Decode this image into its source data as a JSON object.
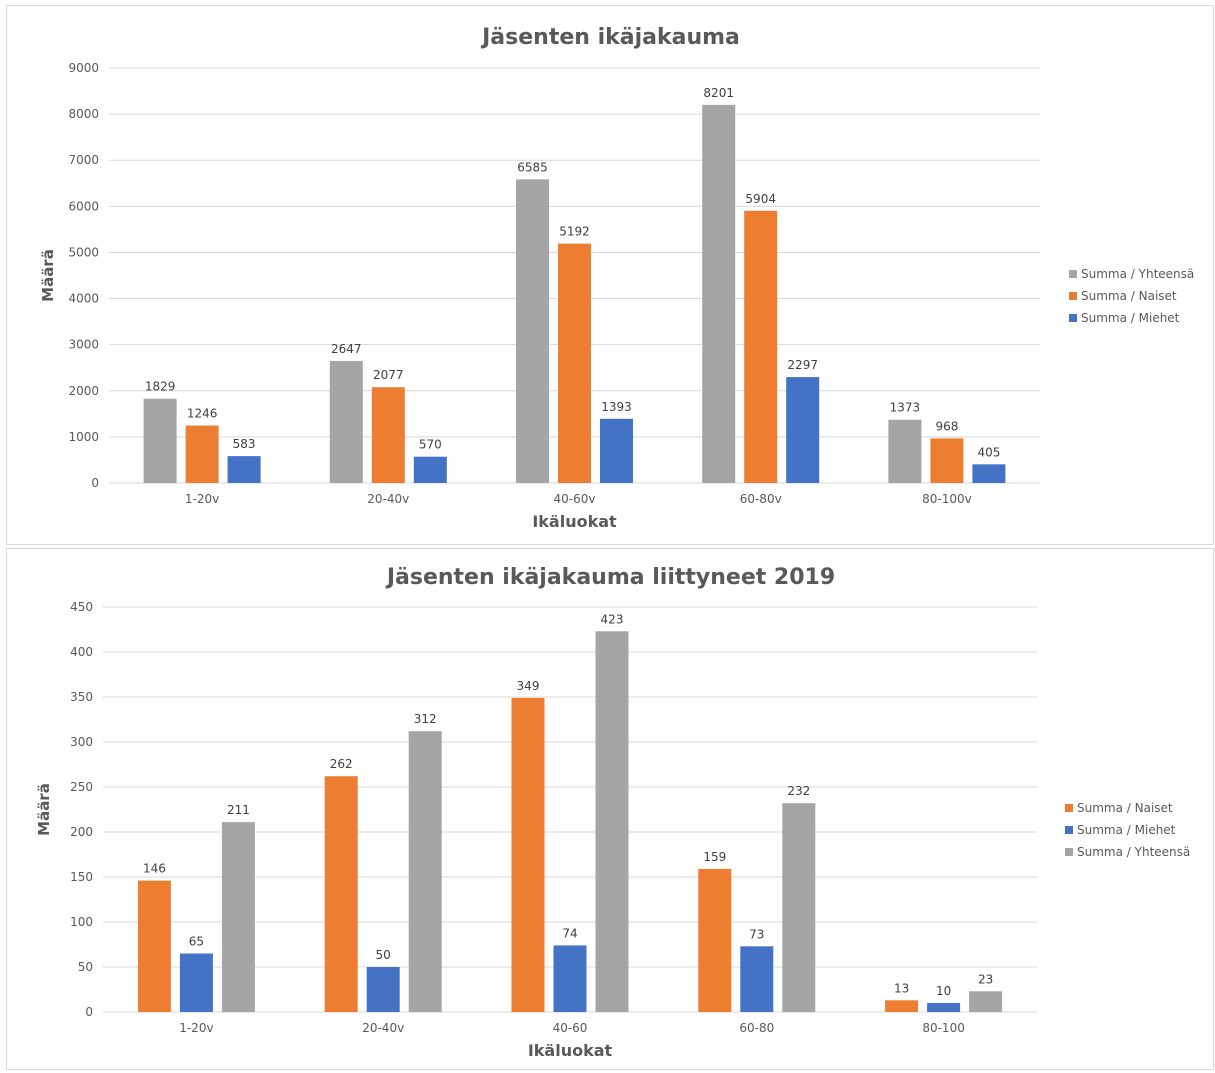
{
  "colors": {
    "Yhteensa": "#a5a5a5",
    "Naiset": "#ed7d31",
    "Miehet": "#4472c4",
    "grid": "#d9d9d9",
    "text": "#595959"
  },
  "chart_data": [
    {
      "type": "bar",
      "title": "Jäsenten ikäjakauma",
      "xlabel": "Ikäluokat",
      "ylabel": "Määrä",
      "ylim": [
        0,
        9000
      ],
      "yticks": [
        0,
        1000,
        2000,
        3000,
        4000,
        5000,
        6000,
        7000,
        8000,
        9000
      ],
      "grid": true,
      "legend_position": "right",
      "categories": [
        "1-20v",
        "20-40v",
        "40-60v",
        "60-80v",
        "80-100v"
      ],
      "series": [
        {
          "name": "Summa  / Yhteensä",
          "color_key": "Yhteensa",
          "values": [
            1829,
            2647,
            6585,
            8201,
            1373
          ]
        },
        {
          "name": "Summa  / Naiset",
          "color_key": "Naiset",
          "values": [
            1246,
            2077,
            5192,
            5904,
            968
          ]
        },
        {
          "name": "Summa  / Miehet",
          "color_key": "Miehet",
          "values": [
            583,
            570,
            1393,
            2297,
            405
          ]
        }
      ]
    },
    {
      "type": "bar",
      "title": "Jäsenten ikäjakauma liittyneet 2019",
      "xlabel": "Ikäluokat",
      "ylabel": "Määrä",
      "ylim": [
        0,
        450
      ],
      "yticks": [
        0,
        50,
        100,
        150,
        200,
        250,
        300,
        350,
        400,
        450
      ],
      "grid": true,
      "legend_position": "right",
      "categories": [
        "1-20v",
        "20-40v",
        "40-60",
        "60-80",
        "80-100"
      ],
      "series": [
        {
          "name": "Summa  / Naiset",
          "color_key": "Naiset",
          "values": [
            146,
            262,
            349,
            159,
            13
          ]
        },
        {
          "name": "Summa  / Miehet",
          "color_key": "Miehet",
          "values": [
            65,
            50,
            74,
            73,
            10
          ]
        },
        {
          "name": "Summa  / Yhteensä",
          "color_key": "Yhteensa",
          "values": [
            211,
            312,
            423,
            232,
            23
          ]
        }
      ]
    }
  ]
}
